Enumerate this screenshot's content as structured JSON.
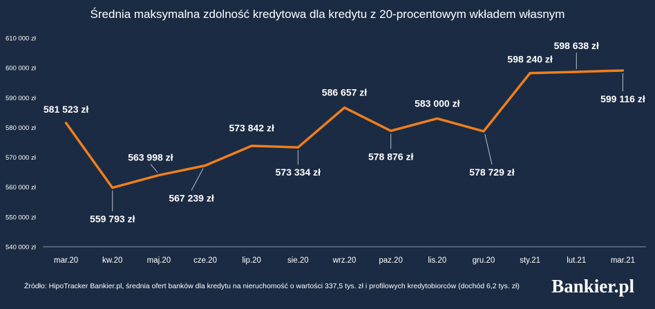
{
  "chart_data": {
    "type": "line",
    "title": "Średnia maksymalna zdolność kredytowa dla kredytu z 20-procentowym wkładem własnym",
    "xlabel": "",
    "ylabel": "",
    "categories": [
      "mar.20",
      "kw.20",
      "maj.20",
      "cze.20",
      "lip.20",
      "sie.20",
      "wrz.20",
      "paz.20",
      "lis.20",
      "gru.20",
      "sty.21",
      "lut.21",
      "mar.21"
    ],
    "series": [
      {
        "values": [
          581523,
          559793,
          563998,
          567239,
          573842,
          573334,
          586657,
          578876,
          583000,
          578729,
          598240,
          598638,
          599116
        ]
      }
    ],
    "data_labels": [
      "581 523 zł",
      "559 793 zł",
      "563 998 zł",
      "567 239 zł",
      "573 842 zł",
      "573 334 zł",
      "586 657 zł",
      "578 876 zł",
      "583 000 zł",
      "578 729 zł",
      "598 240 zł",
      "598 638 zł",
      "599 116 zł"
    ],
    "ylim": [
      540000,
      610000
    ],
    "yticks": [
      540000,
      550000,
      560000,
      570000,
      580000,
      590000,
      600000,
      610000
    ],
    "ytick_labels": [
      "540 000 zł",
      "550 000 zł",
      "560 000 zł",
      "570 000 zł",
      "580 000 zł",
      "590 000 zł",
      "600 000 zł",
      "610 000 zł"
    ],
    "grid": false,
    "legend": "none",
    "colors": {
      "background": "#1b2b43",
      "line": "#f07f1d",
      "text": "#ffffff",
      "axis": "#8a96a8"
    }
  },
  "source": "Źródło: HipoTracker Bankier.pl, średnia ofert banków dla kredytu na nieruchomość o wartości 337,5 tys. zł i profilowych kredytobiorców (dochód 6,2 tys. zł)",
  "brand": "Bankier.pl"
}
